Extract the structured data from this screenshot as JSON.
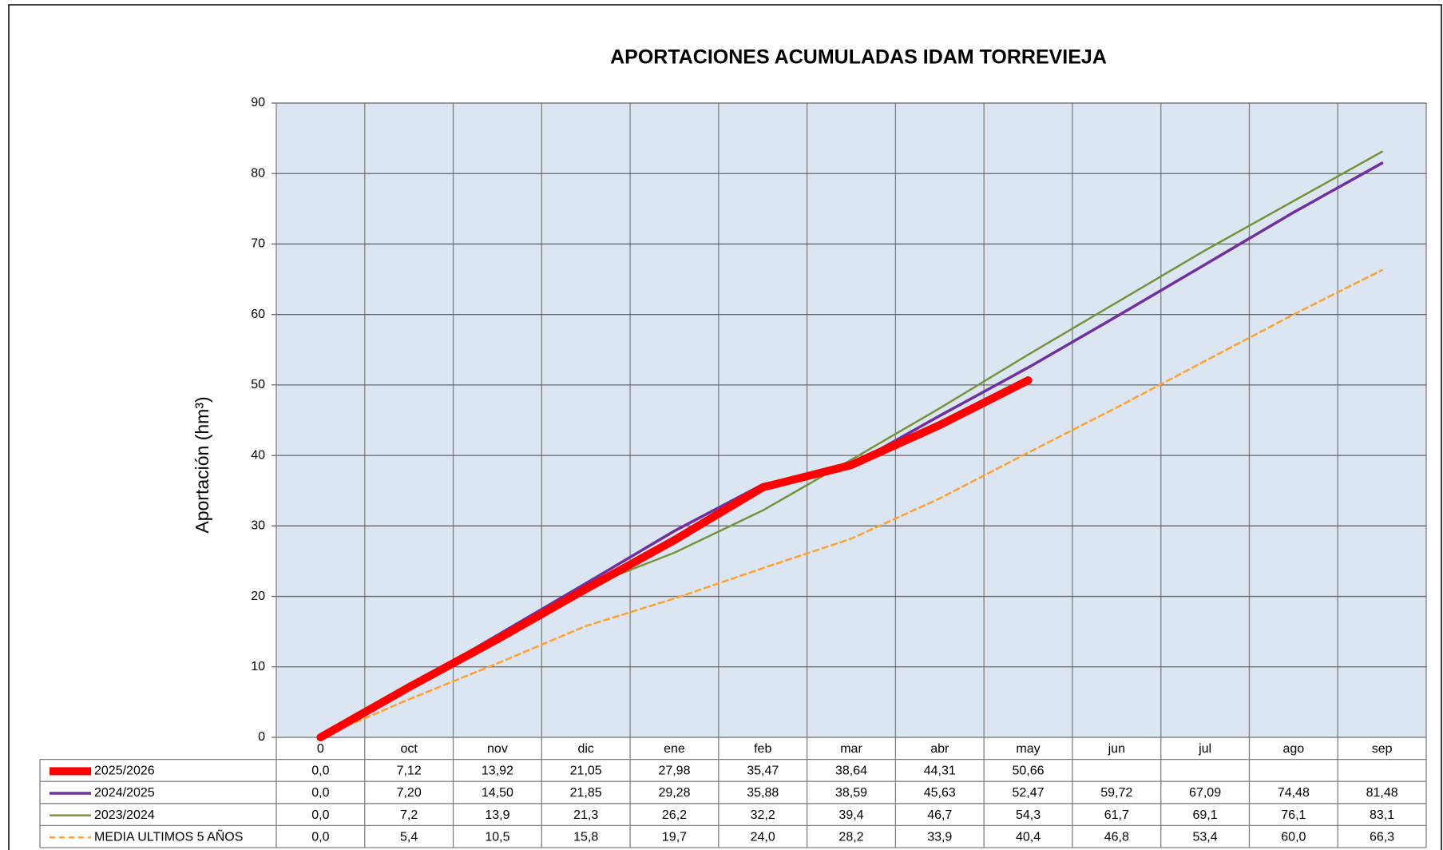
{
  "chart_data": {
    "type": "line",
    "title": "APORTACIONES ACUMULADAS IDAM TORREVIEJA",
    "y_label": "Aportación (hm³)",
    "categories": [
      "0",
      "oct",
      "nov",
      "dic",
      "ene",
      "feb",
      "mar",
      "abr",
      "may",
      "jun",
      "jul",
      "ago",
      "sep"
    ],
    "ylim": [
      0,
      90
    ],
    "yticks": [
      0,
      10,
      20,
      30,
      40,
      50,
      60,
      70,
      80,
      90
    ],
    "grid": true,
    "series": [
      {
        "name": "2025/2026",
        "color": "#ff0000",
        "values": [
          0,
          7.12,
          13.92,
          21.05,
          27.98,
          35.47,
          38.64,
          44.31,
          50.66,
          null,
          null,
          null,
          null
        ],
        "value_labels": [
          "0,0",
          "7,12",
          "13,92",
          "21,05",
          "27,98",
          "35,47",
          "38,64",
          "44,31",
          "50,66",
          null,
          null,
          null,
          null
        ]
      },
      {
        "name": "2024/2025",
        "color": "#7030a0",
        "values": [
          0,
          7.2,
          14.5,
          21.85,
          29.28,
          35.88,
          38.59,
          45.63,
          52.47,
          59.72,
          67.09,
          74.48,
          81.48
        ],
        "value_labels": [
          "0,0",
          "7,20",
          "14,50",
          "21,85",
          "29,28",
          "35,88",
          "38,59",
          "45,63",
          "52,47",
          "59,72",
          "67,09",
          "74,48",
          "81,48"
        ]
      },
      {
        "name": "2023/2024",
        "color": "#77933c",
        "values": [
          0,
          7.2,
          13.9,
          21.3,
          26.2,
          32.2,
          39.4,
          46.7,
          54.3,
          61.7,
          69.1,
          76.1,
          83.1
        ],
        "value_labels": [
          "0,0",
          "7,2",
          "13,9",
          "21,3",
          "26,2",
          "32,2",
          "39,4",
          "46,7",
          "54,3",
          "61,7",
          "69,1",
          "76,1",
          "83,1"
        ]
      },
      {
        "name": "MEDIA ULTIMOS 5 AÑOS",
        "color": "#ffa02f",
        "dashed": true,
        "values": [
          0,
          5.4,
          10.5,
          15.8,
          19.7,
          24,
          28.2,
          33.9,
          40.4,
          46.8,
          53.4,
          60,
          66.3
        ],
        "value_labels": [
          "0,0",
          "5,4",
          "10,5",
          "15,8",
          "19,7",
          "24,0",
          "28,2",
          "33,9",
          "40,4",
          "46,8",
          "53,4",
          "60,0",
          "66,3"
        ]
      }
    ]
  }
}
